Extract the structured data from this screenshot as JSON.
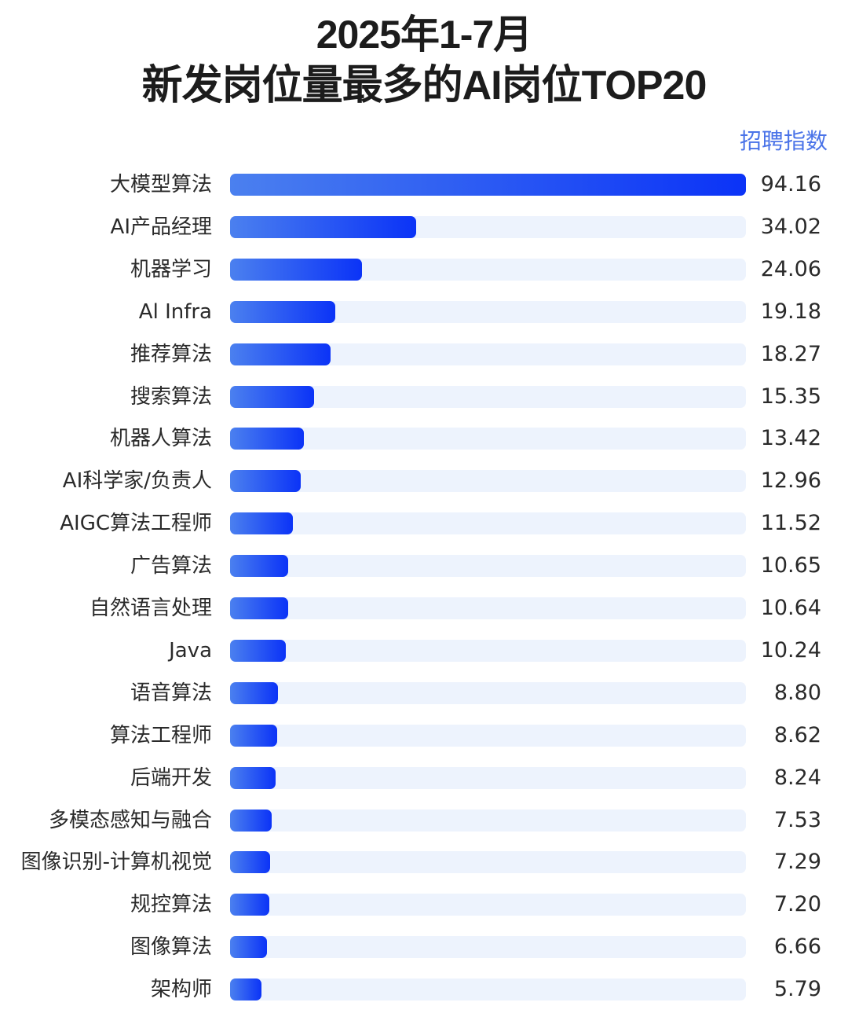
{
  "header": {
    "title_line1": "2025年1-7月",
    "title_line2": "新发岗位量最多的AI岗位TOP20",
    "value_column_label": "招聘指数"
  },
  "colors": {
    "bar_start": "#4b80ef",
    "bar_end": "#0b33f7",
    "track": "#edf3fd",
    "header_label": "#4a73e8"
  },
  "chart_data": {
    "type": "bar",
    "orientation": "horizontal",
    "title": "2025年1-7月 新发岗位量最多的AI岗位TOP20",
    "xlabel": "招聘指数",
    "ylabel": "",
    "xlim": [
      0,
      94.16
    ],
    "grid": false,
    "legend": null,
    "categories": [
      "大模型算法",
      "AI产品经理",
      "机器学习",
      "Al Infra",
      "推荐算法",
      "搜索算法",
      "机器人算法",
      "AI科学家/负责人",
      "AIGC算法工程师",
      "广告算法",
      "自然语言处理",
      "Java",
      "语音算法",
      "算法工程师",
      "后端开发",
      "多模态感知与融合",
      "图像识别-计算机视觉",
      "规控算法",
      "图像算法",
      "架构师"
    ],
    "values": [
      94.16,
      34.02,
      24.06,
      19.18,
      18.27,
      15.35,
      13.42,
      12.96,
      11.52,
      10.65,
      10.64,
      10.24,
      8.8,
      8.62,
      8.24,
      7.53,
      7.29,
      7.2,
      6.66,
      5.79
    ],
    "value_labels": [
      "94.16",
      "34.02",
      "24.06",
      "19.18",
      "18.27",
      "15.35",
      "13.42",
      "12.96",
      "11.52",
      "10.65",
      "10.64",
      "10.24",
      "8.80",
      "8.62",
      "8.24",
      "7.53",
      "7.29",
      "7.20",
      "6.66",
      "5.79"
    ]
  }
}
